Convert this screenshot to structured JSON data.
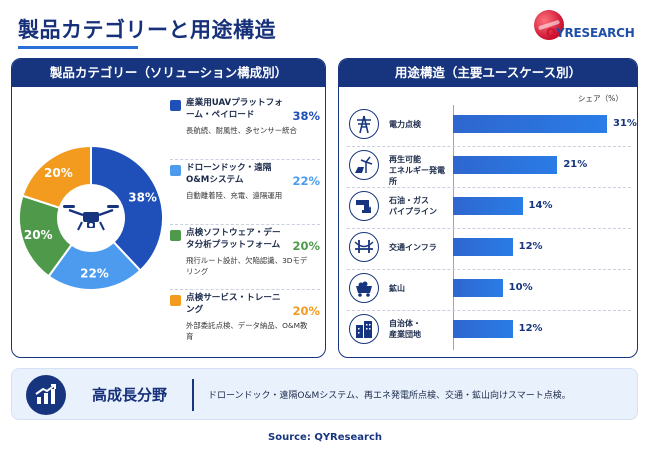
{
  "page": {
    "title": "製品カテゴリーと用途構造",
    "logo": {
      "q": "Q",
      "rest": "YRESEARCH"
    },
    "source": "Source: QYResearch"
  },
  "left_panel": {
    "header": "製品カテゴリー（ソリューション構成別）"
  },
  "right_panel": {
    "header": "用途構造（主要ユースケース別）",
    "unit": "シェア（%）"
  },
  "banner": {
    "title": "高成長分野",
    "text": "ドローンドック・遠隔O&Mシステム、再エネ発電所点検、交通・鉱山向けスマート点検。"
  },
  "chart_data": [
    {
      "type": "pie",
      "donut": true,
      "center_icon": "drone-icon",
      "categories": [
        "産業用UAVプラットフォーム・ペイロード",
        "ドローンドック・遠隔O&Mシステム",
        "点検ソフトウェア・データ分析プラットフォーム",
        "点検サービス・トレーニング"
      ],
      "values": [
        38,
        22,
        20,
        20
      ],
      "value_labels": [
        "38%",
        "22%",
        "20%",
        "20%"
      ],
      "legend": [
        {
          "name": "産業用UAVプラットフォーム・ペイロード",
          "pct": "38%",
          "desc": "長航続、耐風性、多センサー統合",
          "color": "#1f4fb8"
        },
        {
          "name": "ドローンドック・遠隔O&Mシステム",
          "pct": "22%",
          "desc": "自動離着陸、充電、遠隔運用",
          "color": "#4d9bee"
        },
        {
          "name": "点検ソフトウェア・データ分析プラットフォーム",
          "pct": "20%",
          "desc": "飛行ルート設計、欠陥認識、3Dモデリング",
          "color": "#4f9a4a"
        },
        {
          "name": "点検サービス・トレーニング",
          "pct": "20%",
          "desc": "外部委託点検、データ納品、O&M教育",
          "color": "#f29b1f"
        }
      ]
    },
    {
      "type": "bar",
      "orientation": "horizontal",
      "categories": [
        "電力点検",
        "再生可能エネルギー発電所",
        "石油・ガスパイプライン",
        "交通インフラ",
        "鉱山",
        "自治体・産業団地"
      ],
      "display_labels": [
        "電力点検",
        "再生可能\nエネルギー発電所",
        "石油・ガス\nパイプライン",
        "交通インフラ",
        "鉱山",
        "自治体・\n産業団地"
      ],
      "values": [
        31,
        21,
        14,
        12,
        10,
        12
      ],
      "value_labels": [
        "31%",
        "21%",
        "14%",
        "12%",
        "10%",
        "12%"
      ],
      "icons": [
        "power-tower-icon",
        "wind-solar-icon",
        "pipeline-icon",
        "bridge-icon",
        "mine-cart-icon",
        "buildings-icon"
      ],
      "ylabel": "シェア（%）",
      "xlim": [
        0,
        31
      ],
      "color": "#2a6fd8"
    }
  ]
}
